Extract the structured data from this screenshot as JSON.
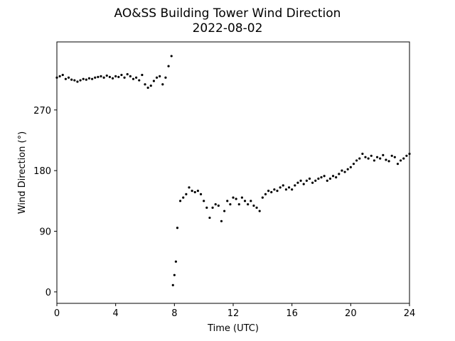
{
  "chart_data": {
    "type": "scatter",
    "title": "AO&SS Building Tower Wind Direction",
    "subtitle": "2022-08-02",
    "x_label": "Time (UTC)",
    "y_label": "Wind Direction (°)",
    "color": "#000000",
    "xlim": [
      0,
      24
    ],
    "xticks": [
      0,
      4,
      8,
      12,
      16,
      20,
      24
    ],
    "ylim": [
      -17,
      371
    ],
    "yticks": [
      0,
      90,
      180,
      270
    ],
    "x": [
      0,
      0.2,
      0.4,
      0.6,
      0.8,
      1.0,
      1.2,
      1.4,
      1.6,
      1.8,
      2.0,
      2.2,
      2.4,
      2.6,
      2.8,
      3.0,
      3.2,
      3.4,
      3.6,
      3.8,
      4.0,
      4.2,
      4.4,
      4.6,
      4.8,
      5.0,
      5.2,
      5.4,
      5.6,
      5.8,
      6.0,
      6.2,
      6.4,
      6.6,
      6.8,
      7.0,
      7.2,
      7.4,
      7.6,
      7.8,
      7.9,
      8.0,
      8.1,
      8.2,
      8.4,
      8.6,
      8.8,
      9.0,
      9.2,
      9.4,
      9.6,
      9.8,
      10.0,
      10.2,
      10.4,
      10.6,
      10.8,
      11.0,
      11.2,
      11.4,
      11.6,
      11.8,
      12.0,
      12.2,
      12.4,
      12.6,
      12.8,
      13.0,
      13.2,
      13.4,
      13.6,
      13.8,
      14.0,
      14.2,
      14.4,
      14.6,
      14.8,
      15.0,
      15.2,
      15.4,
      15.6,
      15.8,
      16.0,
      16.2,
      16.4,
      16.6,
      16.8,
      17.0,
      17.2,
      17.4,
      17.6,
      17.8,
      18.0,
      18.2,
      18.4,
      18.6,
      18.8,
      19.0,
      19.2,
      19.4,
      19.6,
      19.8,
      20.0,
      20.2,
      20.4,
      20.6,
      20.8,
      21.0,
      21.2,
      21.4,
      21.6,
      21.8,
      22.0,
      22.2,
      22.4,
      22.6,
      22.8,
      23.0,
      23.2,
      23.4,
      23.6,
      23.8,
      24.0
    ],
    "values": [
      318,
      320,
      322,
      316,
      318,
      315,
      314,
      312,
      314,
      316,
      315,
      317,
      316,
      318,
      319,
      320,
      318,
      321,
      319,
      317,
      320,
      319,
      322,
      318,
      323,
      320,
      316,
      318,
      314,
      322,
      308,
      303,
      306,
      313,
      318,
      320,
      308,
      318,
      335,
      350,
      10,
      25,
      45,
      95,
      135,
      140,
      145,
      155,
      150,
      148,
      150,
      145,
      135,
      125,
      110,
      125,
      130,
      128,
      105,
      120,
      135,
      130,
      140,
      138,
      130,
      140,
      135,
      130,
      135,
      128,
      125,
      120,
      140,
      145,
      150,
      148,
      152,
      150,
      155,
      158,
      152,
      155,
      152,
      158,
      162,
      165,
      160,
      165,
      168,
      162,
      165,
      168,
      170,
      172,
      165,
      168,
      172,
      170,
      175,
      180,
      178,
      182,
      185,
      190,
      195,
      198,
      205,
      200,
      198,
      202,
      195,
      200,
      198,
      203,
      196,
      194,
      202,
      200,
      190,
      195,
      198,
      202,
      205
    ]
  }
}
